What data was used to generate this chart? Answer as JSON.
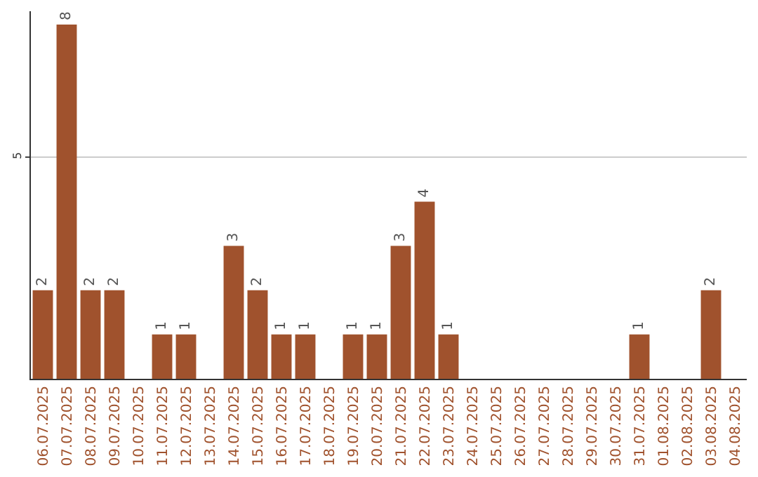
{
  "chart_data": {
    "type": "bar",
    "categories": [
      "06.07.2025",
      "07.07.2025",
      "08.07.2025",
      "09.07.2025",
      "10.07.2025",
      "11.07.2025",
      "12.07.2025",
      "13.07.2025",
      "14.07.2025",
      "15.07.2025",
      "16.07.2025",
      "17.07.2025",
      "18.07.2025",
      "19.07.2025",
      "20.07.2025",
      "21.07.2025",
      "22.07.2025",
      "23.07.2025",
      "24.07.2025",
      "25.07.2025",
      "26.07.2025",
      "27.07.2025",
      "28.07.2025",
      "29.07.2025",
      "30.07.2025",
      "31.07.2025",
      "01.08.2025",
      "02.08.2025",
      "03.08.2025",
      "04.08.2025"
    ],
    "values": [
      2,
      8,
      2,
      2,
      0,
      1,
      1,
      0,
      3,
      2,
      1,
      1,
      0,
      1,
      1,
      3,
      4,
      1,
      0,
      0,
      0,
      0,
      0,
      0,
      0,
      1,
      0,
      0,
      2,
      0
    ],
    "value_labels": [
      "2",
      "8",
      "2",
      "2",
      null,
      "1",
      "1",
      null,
      "3",
      "2",
      "1",
      "1",
      null,
      "1",
      "1",
      "3",
      "4",
      "1",
      null,
      null,
      null,
      null,
      null,
      null,
      null,
      "1",
      null,
      null,
      "2",
      null
    ],
    "color": "#a0522d",
    "ylim": [
      0,
      8.3
    ],
    "yticks": [
      5
    ],
    "grid": "y",
    "legend": false
  }
}
